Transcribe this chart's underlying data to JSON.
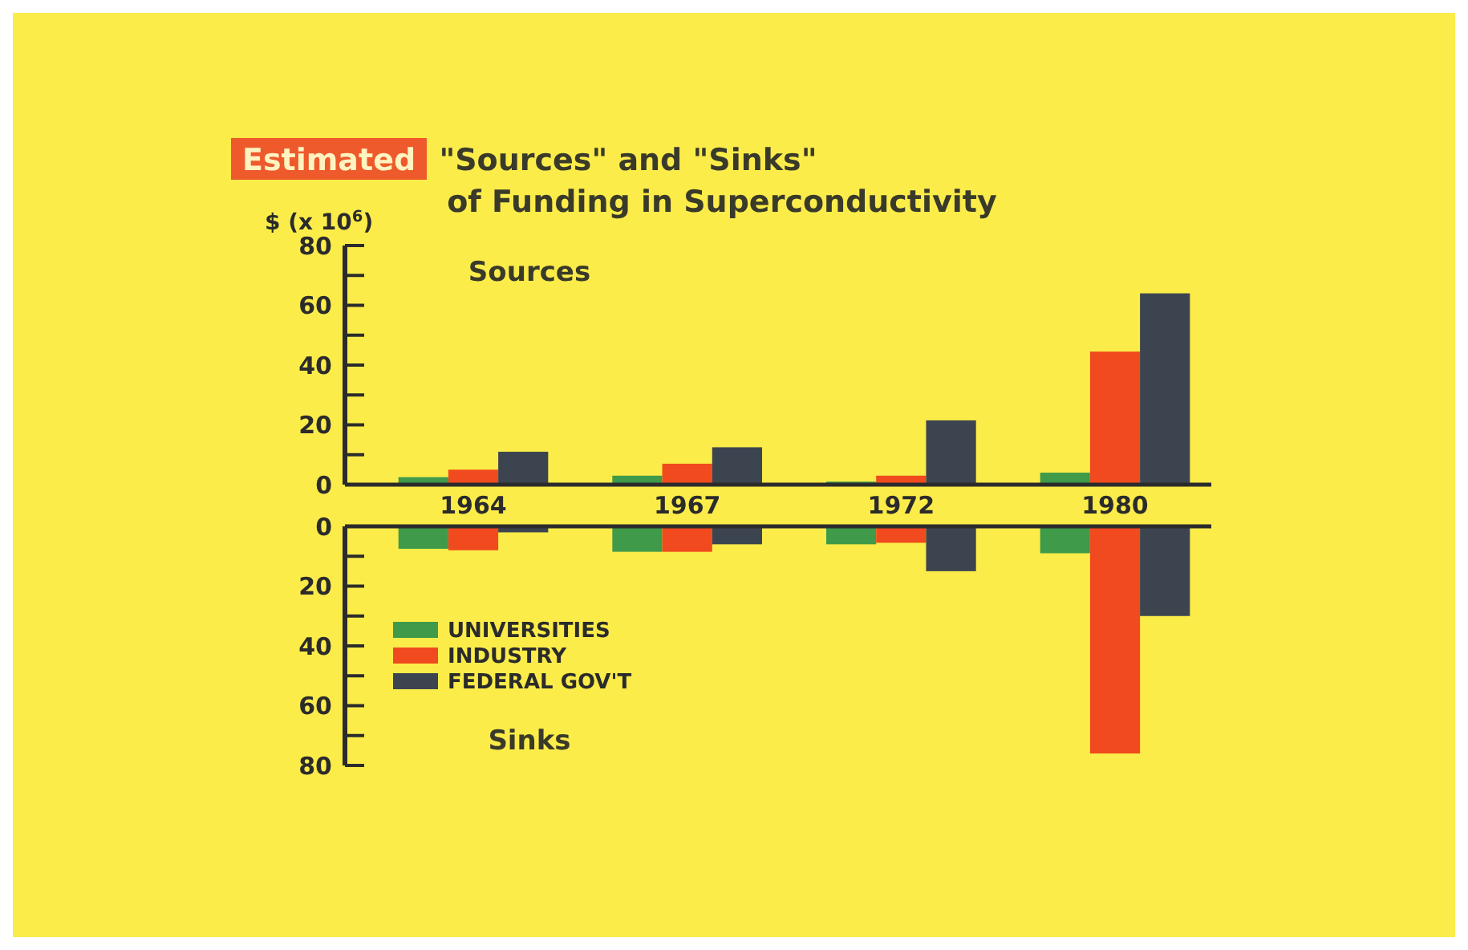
{
  "chart_data": [
    {
      "type": "bar",
      "title": "Estimated \"Sources\" and \"Sinks\" of Funding in Superconductivity",
      "ylabel": "$ (x 10$^{6}$)",
      "annotations": [
        "Sources"
      ],
      "categories": [
        "1964",
        "1967",
        "1972",
        "1980"
      ],
      "ylim": [
        0,
        80
      ],
      "yticks": [
        0,
        {
          "value": 10,
          "label": null
        },
        20,
        {
          "value": 30,
          "label": null
        },
        40,
        {
          "value": 50,
          "label": null
        },
        60,
        {
          "value": 70,
          "label": null
        },
        80
      ],
      "series": [
        {
          "color": "#3f9a4a",
          "values": [
            2.5,
            3,
            1,
            4
          ]
        },
        {
          "color": "#f04a1e",
          "values": [
            5,
            7,
            3,
            44.5
          ]
        },
        {
          "color": "#3c4450",
          "values": [
            11,
            12.5,
            21.5,
            64
          ]
        }
      ]
    },
    {
      "type": "bar",
      "annotations": [
        "Sinks"
      ],
      "categories": [
        null,
        null,
        null,
        null
      ],
      "tick_labels": "y",
      "legend": "left",
      "ylim": [
        80,
        0
      ],
      "yticks": [
        0,
        {
          "value": 10,
          "label": null
        },
        20,
        {
          "value": 30,
          "label": null
        },
        40,
        {
          "value": 50,
          "label": null
        },
        60,
        {
          "value": 70,
          "label": null
        },
        80
      ],
      "series": [
        {
          "name": "UNIVERSITIES",
          "color": "#3f9a4a",
          "values": [
            7.5,
            8.5,
            6,
            9
          ]
        },
        {
          "name": "INDUSTRY",
          "color": "#f04a1e",
          "values": [
            8,
            8.5,
            5.5,
            76
          ]
        },
        {
          "name": "FEDERAL GOV'T",
          "color": "#3c4450",
          "values": [
            2,
            6,
            15,
            30
          ]
        }
      ]
    }
  ]
}
